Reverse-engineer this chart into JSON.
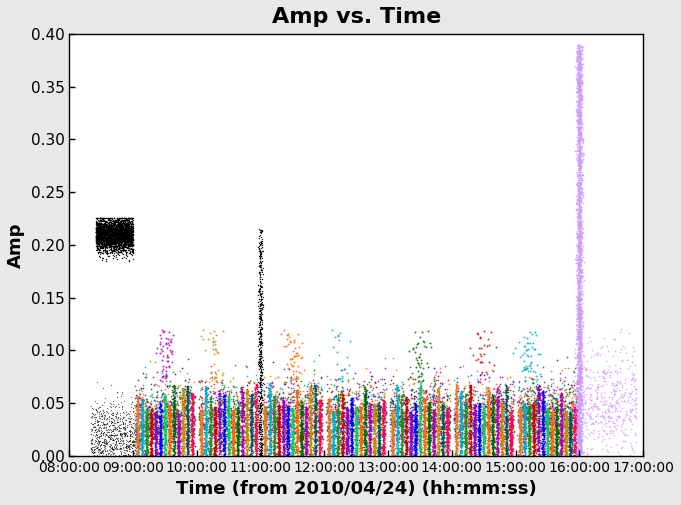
{
  "title": "Amp vs. Time",
  "xlabel": "Time (from 2010/04/24) (hh:mm:ss)",
  "ylabel": "Amp",
  "ylim": [
    0.0,
    0.4
  ],
  "xlim": [
    0,
    32400
  ],
  "yticks": [
    0.0,
    0.05,
    0.1,
    0.15,
    0.2,
    0.25,
    0.3,
    0.35,
    0.4
  ],
  "xtick_labels": [
    "08:00:00",
    "09:00:00",
    "10:00:00",
    "11:00:00",
    "12:00:00",
    "13:00:00",
    "14:00:00",
    "15:00:00",
    "16:00:00",
    "17:00:00"
  ],
  "xtick_positions": [
    0,
    3600,
    7200,
    10800,
    14400,
    18000,
    21600,
    25200,
    28800,
    32400
  ],
  "background_color": "#e8e8e8",
  "plot_bg_color": "#ffffff",
  "title_fontsize": 16,
  "axis_label_fontsize": 13,
  "tick_fontsize": 11
}
